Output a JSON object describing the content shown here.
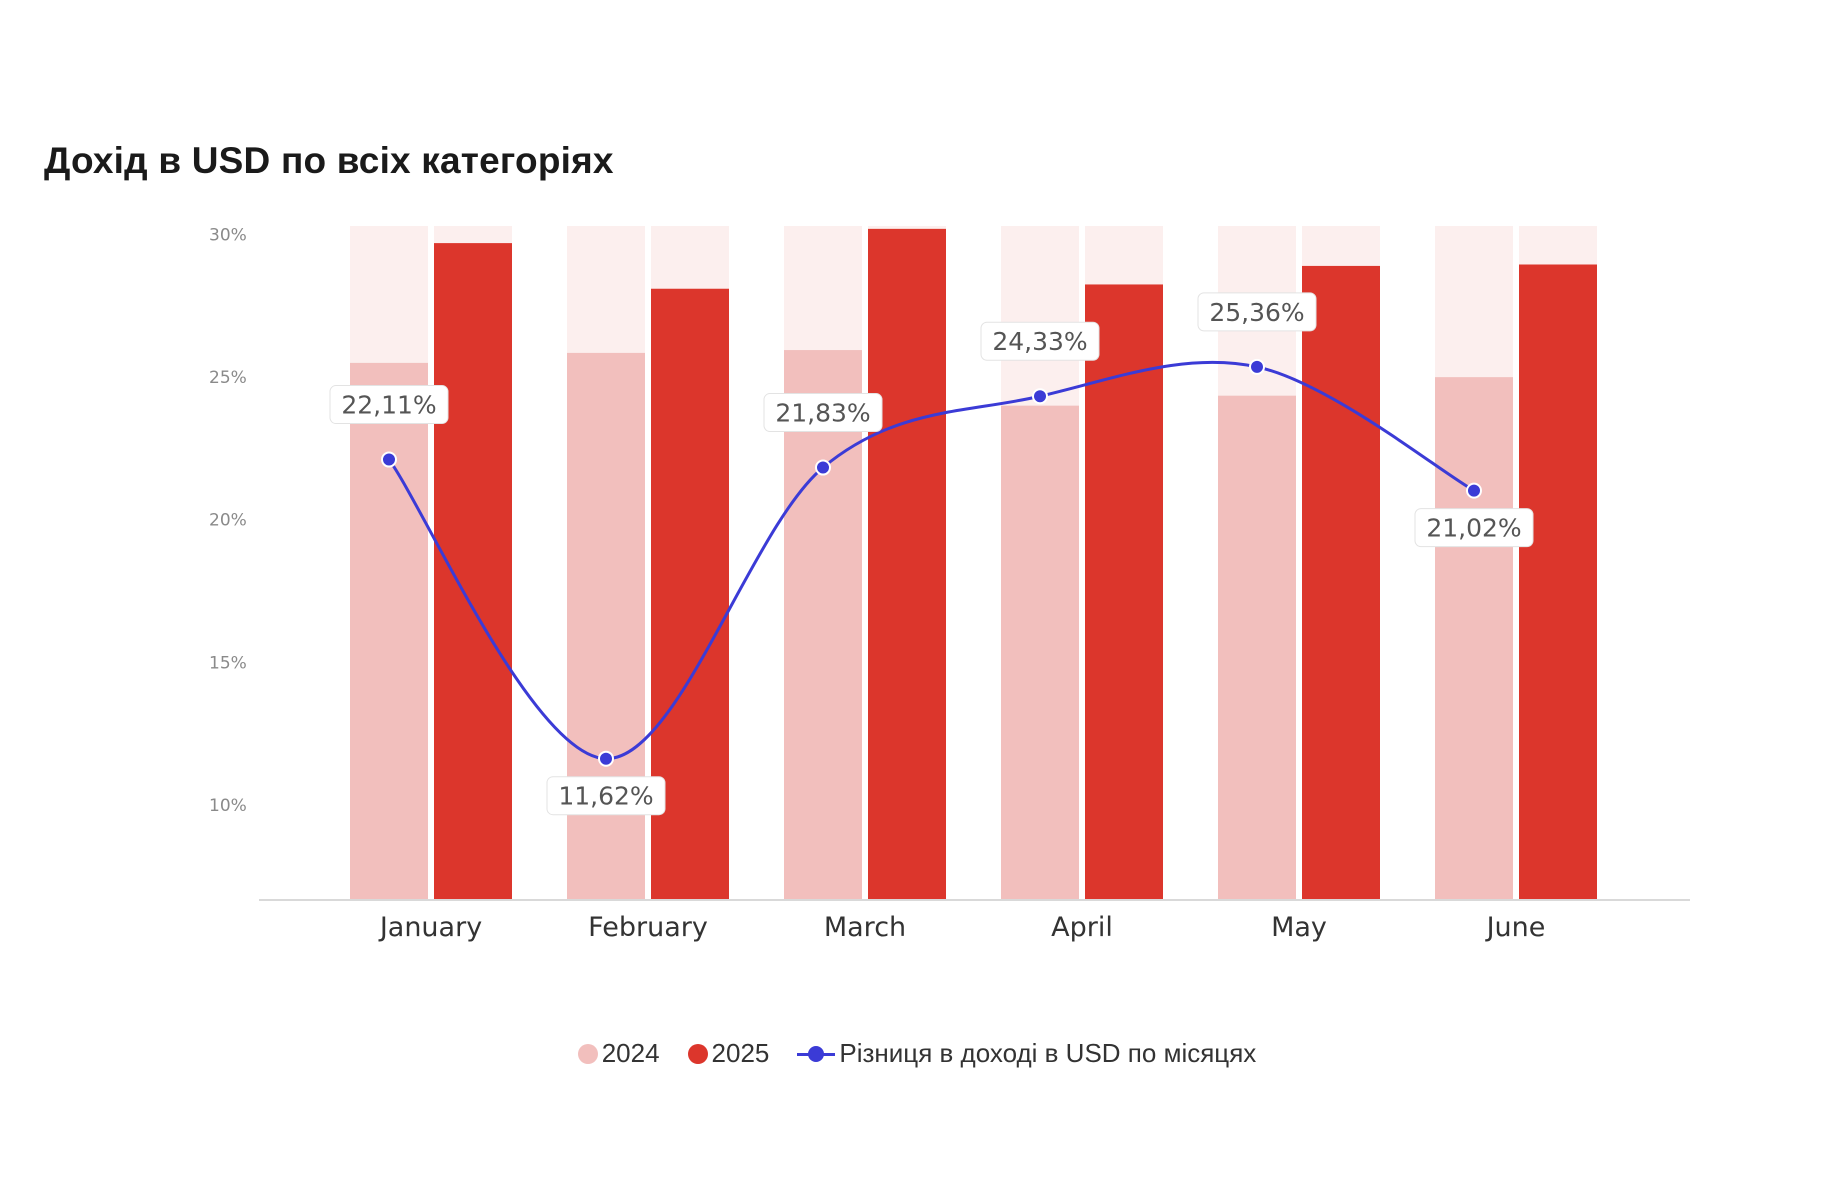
{
  "title": "Дохід в USD по всіх категоріях",
  "colors": {
    "bar_2024": "#f2bfbd",
    "bar_2025": "#dc362c",
    "bar_background": "#fcefee",
    "line": "#3b3bd6",
    "axis": "#d9d9d9",
    "tick_text": "#8a8a8a",
    "category_text": "#333333",
    "label_text": "#555555"
  },
  "legend": {
    "items": [
      {
        "label": "2024",
        "marker": "dot",
        "color": "#f2bfbd"
      },
      {
        "label": "2025",
        "marker": "dot",
        "color": "#dc362c"
      },
      {
        "label": "Різниця в доході в USD по місяцях",
        "marker": "line-dot",
        "color": "#3b3bd6"
      }
    ],
    "position": "bottom-center"
  },
  "chart_data": {
    "type": "bar",
    "categories": [
      "January",
      "February",
      "March",
      "April",
      "May",
      "June"
    ],
    "series": [
      {
        "name": "2024",
        "type": "bar",
        "values": [
          25.5,
          25.85,
          25.95,
          24.0,
          24.35,
          25.0
        ]
      },
      {
        "name": "2025",
        "type": "bar",
        "values": [
          29.7,
          28.1,
          30.2,
          28.25,
          28.9,
          28.95
        ]
      },
      {
        "name": "Різниця в доході в USD по місяцях",
        "type": "line",
        "values": [
          22.11,
          11.62,
          21.83,
          24.33,
          25.36,
          21.02
        ],
        "labels": [
          "22,11%",
          "11,62%",
          "21,83%",
          "24,33%",
          "25,36%",
          "21,02%"
        ],
        "label_positions": [
          "above",
          "below",
          "above",
          "above",
          "above",
          "below"
        ]
      }
    ],
    "ylim": [
      6.7,
      30.3
    ],
    "yticks": [
      10,
      15,
      20,
      25,
      30
    ],
    "ytick_labels": [
      "10%",
      "15%",
      "20%",
      "25%",
      "30%"
    ],
    "xlabel": "",
    "ylabel": "",
    "grid": false,
    "legend_position": "bottom"
  }
}
